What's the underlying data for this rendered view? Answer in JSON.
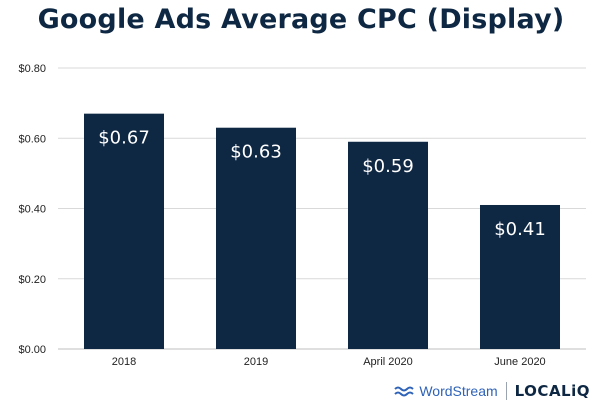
{
  "chart_data": {
    "type": "bar",
    "title": "Google Ads Average CPC (Display)",
    "categories": [
      "2018",
      "2019",
      "April 2020",
      "June 2020"
    ],
    "values": [
      0.67,
      0.63,
      0.59,
      0.41
    ],
    "value_labels": [
      "$0.67",
      "$0.63",
      "$0.59",
      "$0.41"
    ],
    "yticks": [
      0.0,
      0.2,
      0.4,
      0.6,
      0.8
    ],
    "ytick_labels": [
      "$0.00",
      "$0.20",
      "$0.40",
      "$0.60",
      "$0.80"
    ],
    "ylim": [
      0,
      0.8
    ],
    "xlabel": "",
    "ylabel": "",
    "grid": true,
    "bar_color": "#0e2743",
    "label_color": "#ffffff",
    "grid_color": "#d9d9d9"
  },
  "footer": {
    "brand_1": "WordStream",
    "brand_2": "LOCALiQ",
    "brand_1_color": "#2f63b8"
  }
}
